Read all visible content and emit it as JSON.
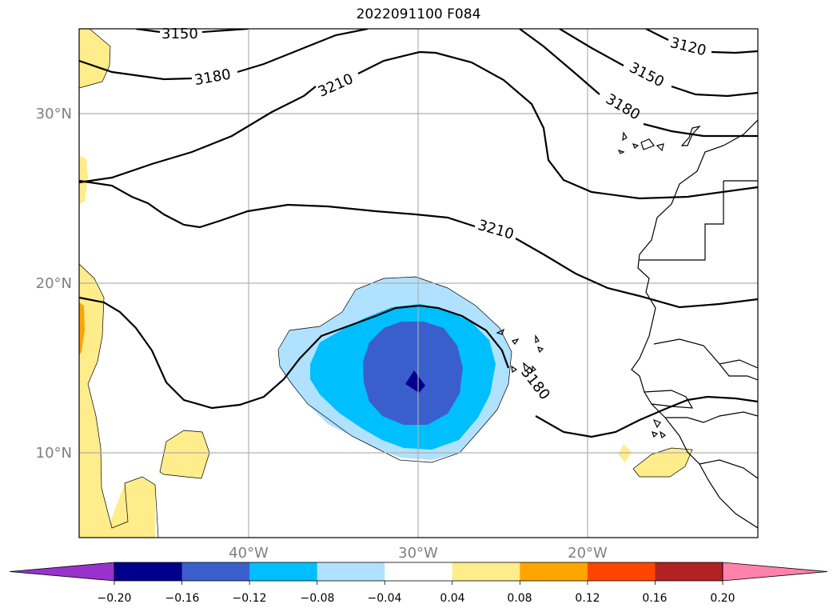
{
  "title": "2022091100 F084",
  "axes": {
    "lon_labels": [
      "40°W",
      "30°W",
      "20°W"
    ],
    "lat_labels": [
      "30°N",
      "20°N",
      "10°N"
    ],
    "lon_range": [
      -50,
      -10
    ],
    "lat_range": [
      5,
      35
    ],
    "grid": true,
    "label_color": "#808080"
  },
  "contour_labels": [
    "3150",
    "3180",
    "3210",
    "3120",
    "3150",
    "3180",
    "3210",
    "3180"
  ],
  "colorbar": {
    "ticks": [
      "−0.20",
      "−0.16",
      "−0.12",
      "−0.08",
      "−0.04",
      "0.04",
      "0.08",
      "0.12",
      "0.16",
      "0.20"
    ],
    "colors": [
      "#9932CC",
      "#00008B",
      "#3A5FCD",
      "#00BFFF",
      "#B0E2FF",
      "#FFFFFF",
      "#FFEC8B",
      "#FFA500",
      "#FF4500",
      "#B22222",
      "#FF82AB"
    ],
    "extend": "both"
  }
}
